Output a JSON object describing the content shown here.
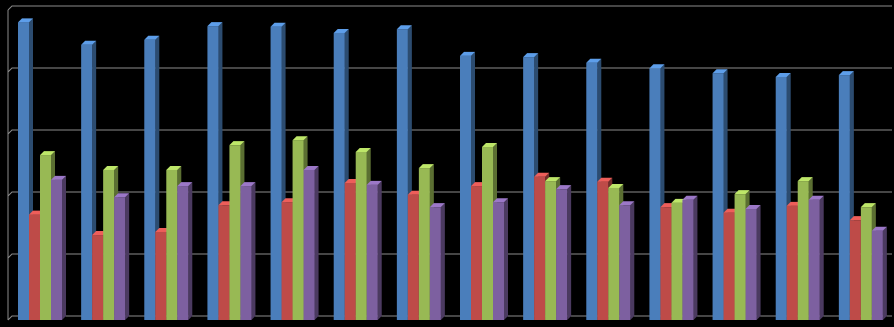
{
  "chart_data": {
    "type": "bar3d",
    "categories": [
      null,
      null,
      null,
      null,
      null,
      null,
      null,
      null,
      null,
      null,
      null,
      null,
      null,
      null
    ],
    "series": [
      {
        "color": "#4a7ebb",
        "values": [
          4.8,
          4.44,
          4.52,
          4.74,
          4.73,
          4.63,
          4.69,
          4.26,
          4.24,
          4.15,
          4.06,
          3.98,
          3.92,
          3.95
        ]
      },
      {
        "color": "#be4b48",
        "values": [
          1.7,
          1.37,
          1.42,
          1.85,
          1.9,
          2.21,
          2.02,
          2.16,
          2.31,
          2.23,
          1.82,
          1.73,
          1.84,
          1.61
        ]
      },
      {
        "color": "#98b954",
        "values": [
          2.66,
          2.42,
          2.42,
          2.82,
          2.9,
          2.71,
          2.45,
          2.79,
          2.24,
          2.13,
          1.89,
          2.03,
          2.24,
          1.82
        ]
      },
      {
        "color": "#7d60a0",
        "values": [
          2.26,
          1.98,
          2.16,
          2.16,
          2.42,
          2.18,
          1.82,
          1.9,
          2.11,
          1.85,
          1.94,
          1.79,
          1.94,
          1.44
        ]
      }
    ],
    "ylim": [
      0,
      5
    ],
    "yticks": [
      0,
      1,
      2,
      3,
      4,
      5
    ],
    "grid": true
  }
}
